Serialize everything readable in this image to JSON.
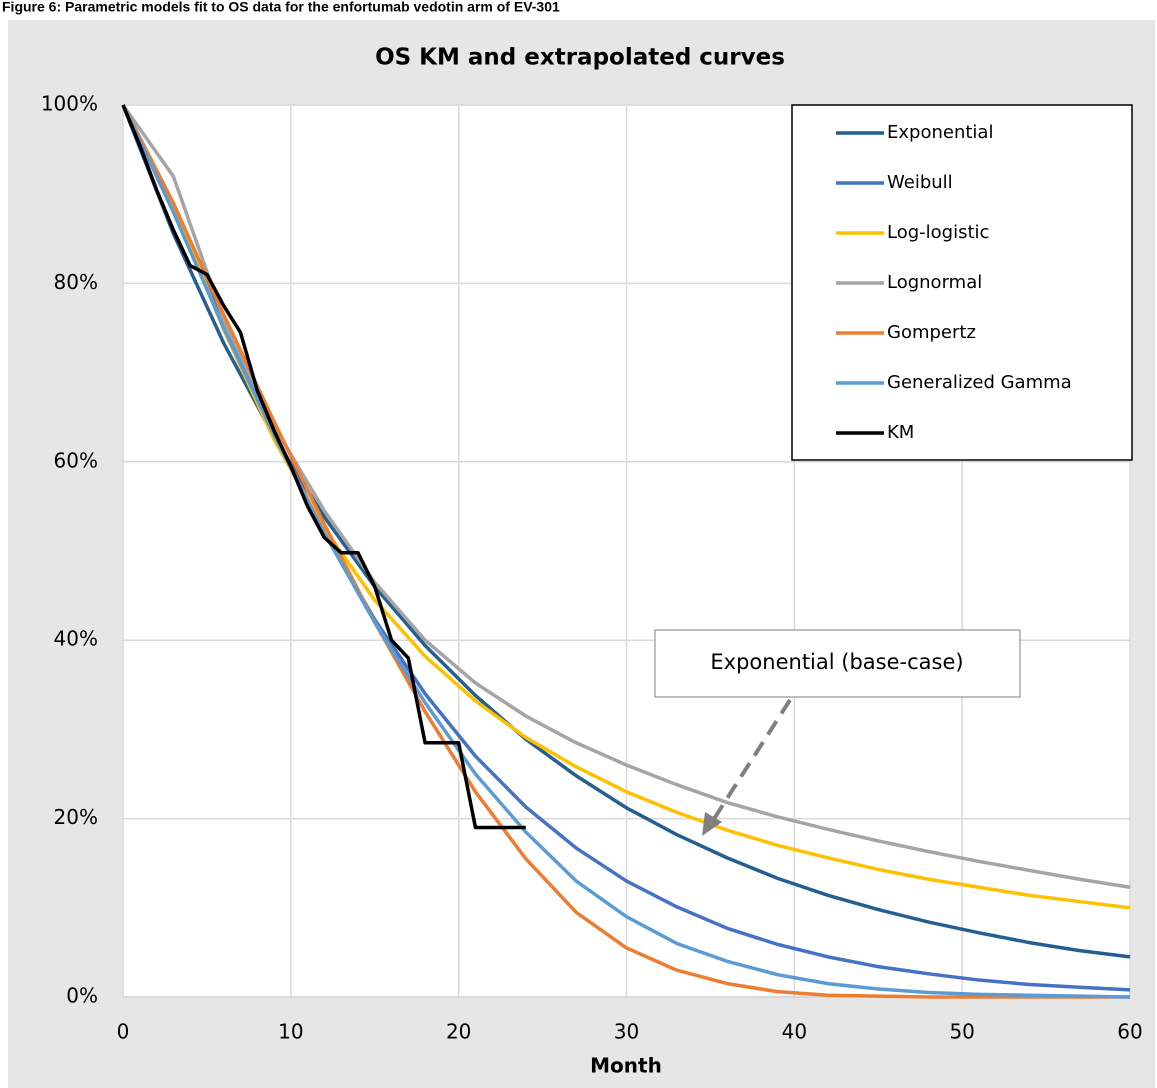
{
  "chart_data": {
    "type": "line",
    "caption": "Figure 6: Parametric models fit to OS data for the enfortumab vedotin arm of EV-301",
    "title": "OS KM and extrapolated curves",
    "x_label": "Month",
    "xlim": [
      0,
      60
    ],
    "xticks": [
      0,
      10,
      20,
      30,
      40,
      50,
      60
    ],
    "ylim": [
      0,
      100
    ],
    "yticks": [
      {
        "value": 0,
        "label": "0%"
      },
      {
        "value": 20,
        "label": "20%"
      },
      {
        "value": 40,
        "label": "40%"
      },
      {
        "value": 60,
        "label": "60%"
      },
      {
        "value": 80,
        "label": "80%"
      },
      {
        "value": 100,
        "label": "100%"
      }
    ],
    "grid": true,
    "legend": "upper right",
    "annotation": "Exponential (base-case)",
    "x": [
      0,
      3,
      6,
      9,
      12,
      15,
      18,
      21,
      24,
      27,
      30,
      33,
      36,
      39,
      42,
      45,
      48,
      51,
      54,
      57,
      60
    ],
    "series": [
      {
        "name": "Exponential",
        "color": "#255e91",
        "values": [
          100,
          85.6,
          73.3,
          62.8,
          53.8,
          46.0,
          39.4,
          33.8,
          28.9,
          24.8,
          21.2,
          18.2,
          15.6,
          13.3,
          11.4,
          9.8,
          8.4,
          7.2,
          6.1,
          5.2,
          4.5
        ]
      },
      {
        "name": "Weibull",
        "color": "#4472c4",
        "values": [
          100,
          89.0,
          76.0,
          63.4,
          52.1,
          42.3,
          34.0,
          27.0,
          21.3,
          16.7,
          13.0,
          10.1,
          7.7,
          5.9,
          4.5,
          3.4,
          2.6,
          1.9,
          1.4,
          1.1,
          0.8
        ]
      },
      {
        "name": "Log-logistic",
        "color": "#ffc000",
        "values": [
          100,
          88.9,
          74.8,
          62.5,
          52.5,
          44.5,
          38.2,
          33.2,
          29.1,
          25.8,
          23.0,
          20.7,
          18.7,
          17.0,
          15.6,
          14.3,
          13.2,
          12.3,
          11.4,
          10.7,
          10.0
        ]
      },
      {
        "name": "Lognormal",
        "color": "#a5a5a5",
        "values": [
          100,
          92,
          76,
          64,
          54.5,
          46.5,
          40,
          35.2,
          31.5,
          28.5,
          26,
          23.8,
          21.8,
          20.2,
          18.8,
          17.5,
          16.3,
          15.2,
          14.2,
          13.2,
          12.3
        ]
      },
      {
        "name": "Gompertz",
        "color": "#ed7d31",
        "values": [
          100,
          89,
          76.5,
          64.5,
          53,
          42,
          32,
          23,
          15.5,
          9.5,
          5.5,
          3,
          1.5,
          0.6,
          0.2,
          0.1,
          0,
          0,
          0,
          0,
          0
        ]
      },
      {
        "name": "Generalized Gamma",
        "color": "#5b9bd5",
        "values": [
          100,
          88,
          75,
          63,
          52,
          42,
          33,
          25,
          18.5,
          13,
          9,
          6,
          4,
          2.5,
          1.5,
          0.9,
          0.5,
          0.3,
          0.2,
          0.1,
          0
        ]
      },
      {
        "name": "KM",
        "color": "#000000",
        "x": [
          0,
          1,
          2,
          3,
          4,
          5,
          6,
          7,
          8,
          9,
          10,
          11,
          12,
          13,
          14,
          15,
          16,
          17,
          18,
          19,
          20,
          21,
          22,
          23,
          24
        ],
        "values": [
          100,
          95.5,
          90.5,
          86,
          82,
          81,
          77.5,
          74.5,
          68,
          63.5,
          59.5,
          55,
          51.5,
          49.8,
          49.8,
          46,
          40,
          38,
          28.5,
          28.5,
          28.5,
          19,
          19,
          19,
          19
        ]
      }
    ]
  }
}
